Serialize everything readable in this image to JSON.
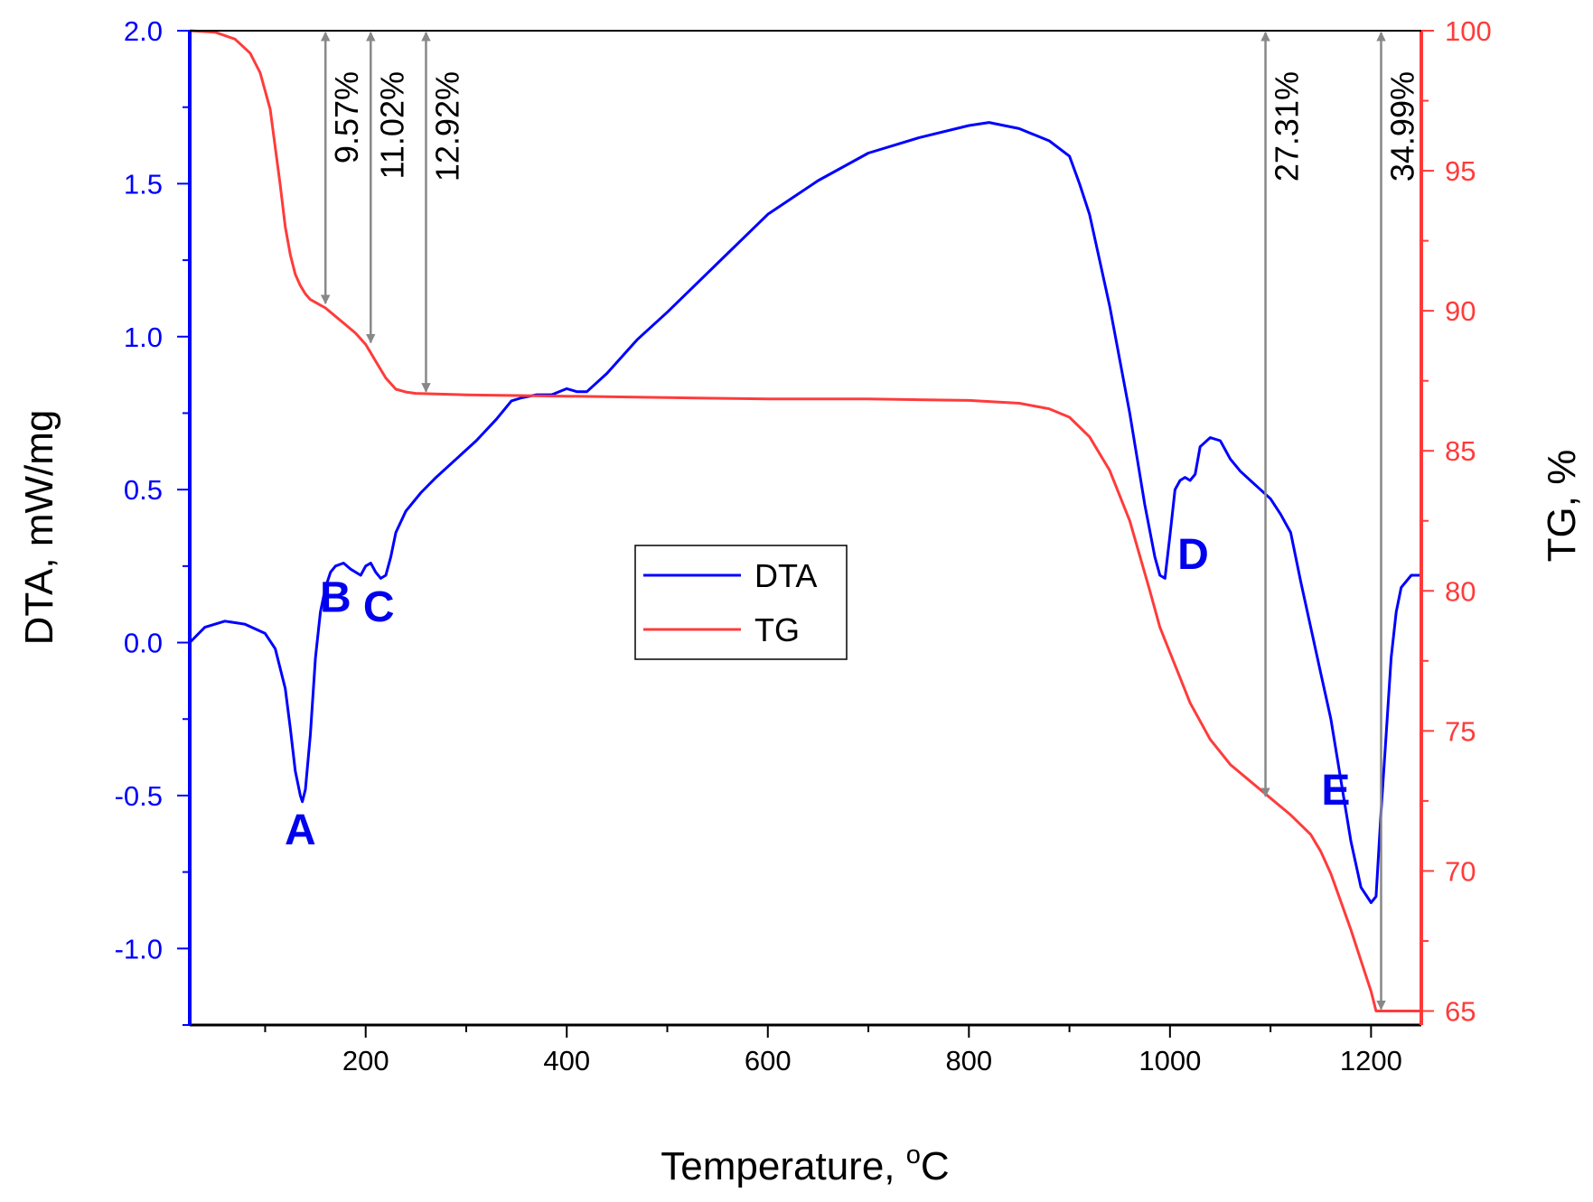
{
  "chart_data": {
    "type": "line",
    "xlabel": "Temperature, ",
    "xlabel_sup": "o",
    "xlabel_unit": "C",
    "ylabel_left": "DTA, mW/mg",
    "ylabel_right": "TG, %",
    "xlim": [
      25,
      1250
    ],
    "ylim_left": [
      -1.25,
      2.0
    ],
    "ylim_right": [
      64.5,
      100
    ],
    "x_ticks": [
      200,
      400,
      600,
      800,
      1000,
      1200
    ],
    "y_left_ticks": [
      "-1.0",
      "-0.5",
      "0.0",
      "0.5",
      "1.0",
      "1.5",
      "2.0"
    ],
    "y_right_ticks": [
      "65",
      "70",
      "75",
      "80",
      "85",
      "90",
      "95",
      "100"
    ],
    "grid": false,
    "legend_position": "center",
    "colors": {
      "dta": "#0000ff",
      "tg": "#ff3b3b",
      "arrow": "#888888"
    },
    "series": [
      {
        "name": "DTA",
        "axis": "left",
        "x": [
          25,
          40,
          60,
          80,
          100,
          110,
          120,
          125,
          130,
          135,
          137,
          140,
          145,
          150,
          155,
          160,
          165,
          170,
          178,
          185,
          195,
          200,
          205,
          210,
          215,
          220,
          225,
          230,
          240,
          255,
          270,
          290,
          310,
          330,
          345,
          355,
          370,
          385,
          400,
          410,
          420,
          440,
          470,
          500,
          550,
          600,
          650,
          700,
          750,
          800,
          820,
          850,
          880,
          900,
          910,
          920,
          940,
          960,
          975,
          985,
          990,
          995,
          1000,
          1005,
          1010,
          1015,
          1020,
          1025,
          1030,
          1040,
          1050,
          1060,
          1070,
          1080,
          1090,
          1100,
          1110,
          1120,
          1130,
          1140,
          1150,
          1160,
          1170,
          1180,
          1190,
          1200,
          1205,
          1210,
          1215,
          1220,
          1225,
          1230,
          1240,
          1250
        ],
        "y": [
          0.0,
          0.05,
          0.07,
          0.06,
          0.03,
          -0.02,
          -0.15,
          -0.28,
          -0.42,
          -0.5,
          -0.52,
          -0.48,
          -0.3,
          -0.05,
          0.1,
          0.18,
          0.23,
          0.25,
          0.26,
          0.24,
          0.22,
          0.25,
          0.26,
          0.23,
          0.21,
          0.22,
          0.28,
          0.36,
          0.43,
          0.49,
          0.54,
          0.6,
          0.66,
          0.73,
          0.79,
          0.8,
          0.81,
          0.81,
          0.83,
          0.82,
          0.82,
          0.88,
          0.99,
          1.08,
          1.24,
          1.4,
          1.51,
          1.6,
          1.65,
          1.69,
          1.7,
          1.68,
          1.64,
          1.59,
          1.5,
          1.4,
          1.1,
          0.75,
          0.45,
          0.28,
          0.22,
          0.21,
          0.35,
          0.5,
          0.53,
          0.54,
          0.53,
          0.55,
          0.64,
          0.67,
          0.66,
          0.6,
          0.56,
          0.53,
          0.5,
          0.47,
          0.42,
          0.36,
          0.2,
          0.05,
          -0.1,
          -0.25,
          -0.45,
          -0.65,
          -0.8,
          -0.85,
          -0.83,
          -0.55,
          -0.3,
          -0.05,
          0.1,
          0.18,
          0.22,
          0.22
        ]
      },
      {
        "name": "TG",
        "axis": "right",
        "x": [
          25,
          50,
          70,
          85,
          95,
          105,
          115,
          120,
          125,
          130,
          135,
          140,
          145,
          150,
          155,
          160,
          170,
          180,
          190,
          200,
          205,
          210,
          220,
          230,
          240,
          250,
          300,
          400,
          500,
          600,
          700,
          800,
          850,
          880,
          900,
          920,
          940,
          960,
          980,
          990,
          1000,
          1010,
          1020,
          1040,
          1060,
          1080,
          1100,
          1120,
          1140,
          1150,
          1160,
          1170,
          1180,
          1190,
          1200,
          1205,
          1210,
          1250
        ],
        "y": [
          100,
          99.95,
          99.7,
          99.2,
          98.5,
          97.2,
          94.5,
          93.0,
          92.0,
          91.3,
          90.9,
          90.6,
          90.4,
          90.3,
          90.2,
          90.1,
          89.8,
          89.5,
          89.2,
          88.8,
          88.5,
          88.2,
          87.6,
          87.2,
          87.1,
          87.05,
          87.0,
          86.95,
          86.9,
          86.85,
          86.85,
          86.8,
          86.7,
          86.5,
          86.2,
          85.5,
          84.3,
          82.5,
          80.0,
          78.7,
          77.8,
          76.9,
          76.0,
          74.7,
          73.8,
          73.2,
          72.6,
          72.0,
          71.3,
          70.7,
          69.9,
          68.9,
          67.9,
          66.8,
          65.7,
          65.0,
          65.0,
          65.0
        ]
      }
    ],
    "peaks": [
      {
        "label": "A",
        "x": 135,
        "y": -0.66
      },
      {
        "label": "B",
        "x": 170,
        "y": 0.1
      },
      {
        "label": "C",
        "x": 213,
        "y": 0.07
      },
      {
        "label": "D",
        "x": 1023,
        "y": 0.24
      },
      {
        "label": "E",
        "x": 1165,
        "y": -0.53
      }
    ],
    "mass_losses": [
      {
        "label": "9.57%",
        "x": 160,
        "tg_end": 90.2
      },
      {
        "label": "11.02%",
        "x": 205,
        "tg_end": 88.8
      },
      {
        "label": "12.92%",
        "x": 260,
        "tg_end": 87.05
      },
      {
        "label": "27.31%",
        "x": 1095,
        "tg_end": 72.6
      },
      {
        "label": "34.99%",
        "x": 1210,
        "tg_end": 65.0
      }
    ],
    "legend": [
      "DTA",
      "TG"
    ]
  }
}
